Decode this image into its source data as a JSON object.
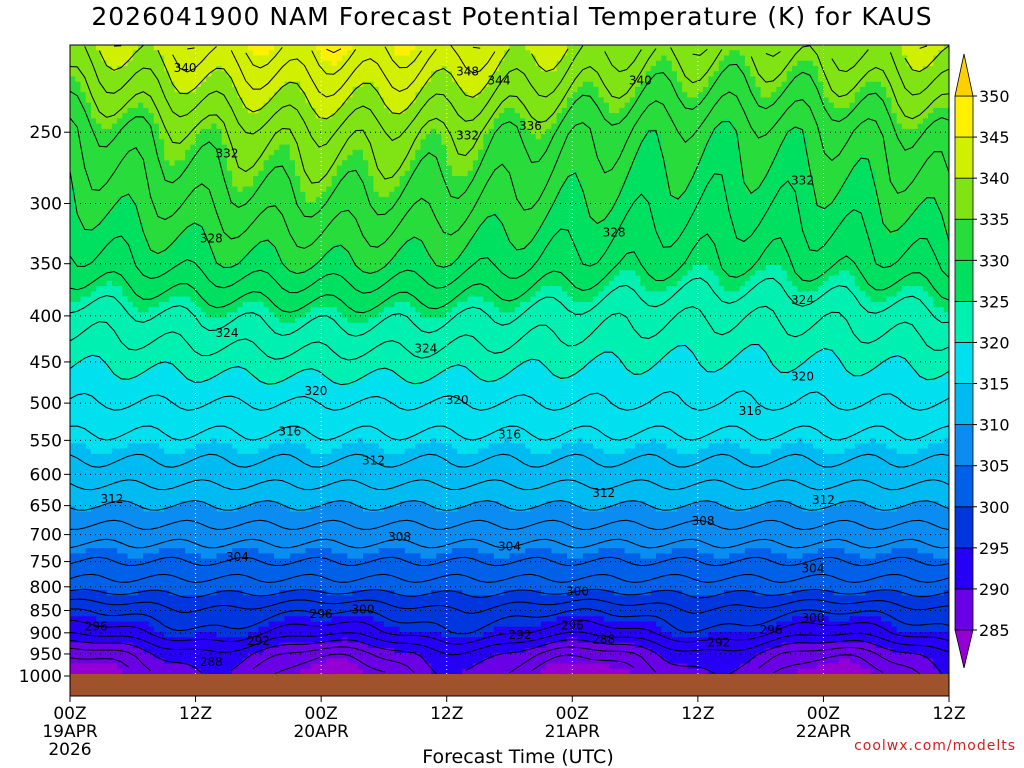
{
  "chart_data": {
    "type": "heatmap",
    "title": "2026041900 NAM Forecast Potential Temperature (K) for KAUS",
    "xlabel": "Forecast Time (UTC)",
    "ylabel": "",
    "credit": "coolwx.com/modelts",
    "x_ticks": [
      {
        "hour": 0,
        "lines": [
          "00Z",
          "19APR",
          "2026"
        ]
      },
      {
        "hour": 12,
        "lines": [
          "12Z"
        ]
      },
      {
        "hour": 24,
        "lines": [
          "00Z",
          "20APR"
        ]
      },
      {
        "hour": 36,
        "lines": [
          "12Z"
        ]
      },
      {
        "hour": 48,
        "lines": [
          "00Z",
          "21APR"
        ]
      },
      {
        "hour": 60,
        "lines": [
          "12Z"
        ]
      },
      {
        "hour": 72,
        "lines": [
          "00Z",
          "22APR"
        ]
      },
      {
        "hour": 84,
        "lines": [
          "12Z"
        ]
      }
    ],
    "xlim": [
      0,
      84
    ],
    "y_ticks": [
      250,
      300,
      350,
      400,
      450,
      500,
      550,
      600,
      650,
      700,
      750,
      800,
      850,
      900,
      950,
      1000
    ],
    "ylim": [
      200,
      1000
    ],
    "y_scale": "log",
    "colorbar": {
      "levels": [
        285,
        290,
        295,
        300,
        305,
        310,
        315,
        320,
        325,
        330,
        335,
        340,
        345,
        350
      ],
      "colors": [
        "#9400d3",
        "#6a00e6",
        "#2600f5",
        "#0036dd",
        "#0060e8",
        "#0a8cf0",
        "#00baf2",
        "#00e0ee",
        "#00f0b2",
        "#00e060",
        "#28dc3c",
        "#80e414",
        "#d0f000",
        "#fff000",
        "#ffd000"
      ]
    },
    "profile_hour0": [
      {
        "p": 1000,
        "theta": 286.5
      },
      {
        "p": 950,
        "theta": 289
      },
      {
        "p": 900,
        "theta": 294
      },
      {
        "p": 850,
        "theta": 297
      },
      {
        "p": 800,
        "theta": 301
      },
      {
        "p": 750,
        "theta": 304
      },
      {
        "p": 700,
        "theta": 307
      },
      {
        "p": 650,
        "theta": 310
      },
      {
        "p": 600,
        "theta": 313
      },
      {
        "p": 550,
        "theta": 315.5
      },
      {
        "p": 500,
        "theta": 318
      },
      {
        "p": 450,
        "theta": 320.5
      },
      {
        "p": 400,
        "theta": 323.5
      },
      {
        "p": 350,
        "theta": 328
      },
      {
        "p": 300,
        "theta": 331
      },
      {
        "p": 250,
        "theta": 334
      },
      {
        "p": 200,
        "theta": 341
      }
    ],
    "contour_labels": [
      {
        "hour": 11,
        "p": 212,
        "text": "340"
      },
      {
        "hour": 38,
        "p": 214,
        "text": "348"
      },
      {
        "hour": 41,
        "p": 219,
        "text": "344"
      },
      {
        "hour": 54.5,
        "p": 219,
        "text": "340"
      },
      {
        "hour": 38,
        "p": 252,
        "text": "332"
      },
      {
        "hour": 44,
        "p": 246,
        "text": "336"
      },
      {
        "hour": 15,
        "p": 264,
        "text": "332"
      },
      {
        "hour": 70,
        "p": 283,
        "text": "332"
      },
      {
        "hour": 52,
        "p": 323,
        "text": "328"
      },
      {
        "hour": 13.5,
        "p": 328,
        "text": "328"
      },
      {
        "hour": 70,
        "p": 384,
        "text": "324"
      },
      {
        "hour": 15,
        "p": 418,
        "text": "324"
      },
      {
        "hour": 34,
        "p": 435,
        "text": "324"
      },
      {
        "hour": 70,
        "p": 467,
        "text": "320"
      },
      {
        "hour": 23.5,
        "p": 485,
        "text": "320"
      },
      {
        "hour": 37,
        "p": 496,
        "text": "320"
      },
      {
        "hour": 65,
        "p": 510,
        "text": "316"
      },
      {
        "hour": 21,
        "p": 538,
        "text": "316"
      },
      {
        "hour": 42,
        "p": 542,
        "text": "316"
      },
      {
        "hour": 29,
        "p": 579,
        "text": "312"
      },
      {
        "hour": 51,
        "p": 629,
        "text": "312"
      },
      {
        "hour": 4,
        "p": 639,
        "text": "312"
      },
      {
        "hour": 72,
        "p": 641,
        "text": "312"
      },
      {
        "hour": 60.5,
        "p": 676,
        "text": "308"
      },
      {
        "hour": 31.5,
        "p": 704,
        "text": "308"
      },
      {
        "hour": 42,
        "p": 722,
        "text": "304"
      },
      {
        "hour": 16,
        "p": 741,
        "text": "304"
      },
      {
        "hour": 71,
        "p": 763,
        "text": "304"
      },
      {
        "hour": 48.5,
        "p": 810,
        "text": "300"
      },
      {
        "hour": 28,
        "p": 848,
        "text": "300"
      },
      {
        "hour": 24,
        "p": 858,
        "text": "296"
      },
      {
        "hour": 71,
        "p": 866,
        "text": "300"
      },
      {
        "hour": 2.5,
        "p": 886,
        "text": "296"
      },
      {
        "hour": 48,
        "p": 883,
        "text": "296"
      },
      {
        "hour": 67,
        "p": 893,
        "text": "296"
      },
      {
        "hour": 43,
        "p": 905,
        "text": "292"
      },
      {
        "hour": 18,
        "p": 919,
        "text": "292"
      },
      {
        "hour": 62,
        "p": 922,
        "text": "292"
      },
      {
        "hour": 51,
        "p": 915,
        "text": "288"
      },
      {
        "hour": 13.5,
        "p": 970,
        "text": "288"
      }
    ]
  }
}
